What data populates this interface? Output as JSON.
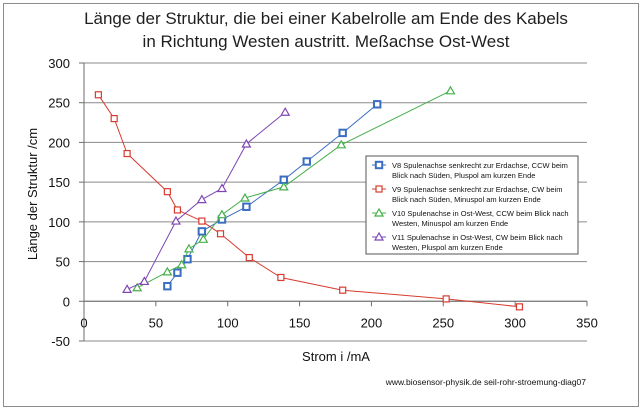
{
  "chart_data": {
    "type": "scatter",
    "title_lines": [
      "Länge der Struktur, die bei einer Kabelrolle am Ende des Kabels",
      "in Richtung Westen austritt.  Meßachse Ost-West"
    ],
    "xlabel": "Strom i /mA",
    "ylabel": "Länge der Struktur /cm",
    "xlim": [
      0,
      350
    ],
    "ylim": [
      -50,
      300
    ],
    "x_ticks": [
      0,
      50,
      100,
      150,
      200,
      250,
      300,
      350
    ],
    "y_ticks": [
      -50,
      0,
      50,
      100,
      150,
      200,
      250,
      300
    ],
    "grid": "horizontal",
    "legend_position": "right",
    "source": "www.biosensor-physik.de seil-rohr-stroemung-diag07",
    "series": [
      {
        "name_lines": [
          "V8 Spulenachse senkrecht zur Erdachse, CCW beim",
          "Blick nach Süden, Pluspol am kurzen Ende"
        ],
        "color": "#3b6ec1",
        "marker": "square-thick",
        "x": [
          58,
          65,
          72,
          82,
          96,
          113,
          139,
          155,
          180,
          204
        ],
        "y": [
          19,
          36,
          53,
          88,
          103,
          119,
          153,
          176,
          212,
          248
        ]
      },
      {
        "name_lines": [
          "V9 Spulenachse senkrecht zur Erdachse, CW beim",
          "Blick nach Süden, Minuspol am kurzen Ende"
        ],
        "color": "#d83b30",
        "marker": "square",
        "x": [
          10,
          21,
          30,
          58,
          65,
          82,
          95,
          115,
          137,
          180,
          252,
          303
        ],
        "y": [
          260,
          230,
          186,
          138,
          115,
          101,
          85,
          55,
          30,
          14,
          3,
          -7
        ]
      },
      {
        "name_lines": [
          "V10 Spulenachse in Ost-West, CCW beim Blick nach",
          "Westen, Minuspol am kurzen Ende"
        ],
        "color": "#45b04a",
        "marker": "triangle",
        "x": [
          37,
          58,
          68,
          73,
          83,
          96,
          112,
          139,
          179,
          255
        ],
        "y": [
          17,
          37,
          46,
          66,
          78,
          109,
          130,
          144,
          197,
          265
        ]
      },
      {
        "name_lines": [
          "V11 Spulenachse in Ost-West, CW beim Blick nach",
          "Westen, Pluspol am kurzen Ende"
        ],
        "color": "#7e47b5",
        "marker": "cross",
        "x": [
          30,
          42,
          64,
          82,
          96,
          113,
          140
        ],
        "y": [
          15,
          25,
          101,
          128,
          142,
          198,
          238
        ]
      }
    ]
  }
}
